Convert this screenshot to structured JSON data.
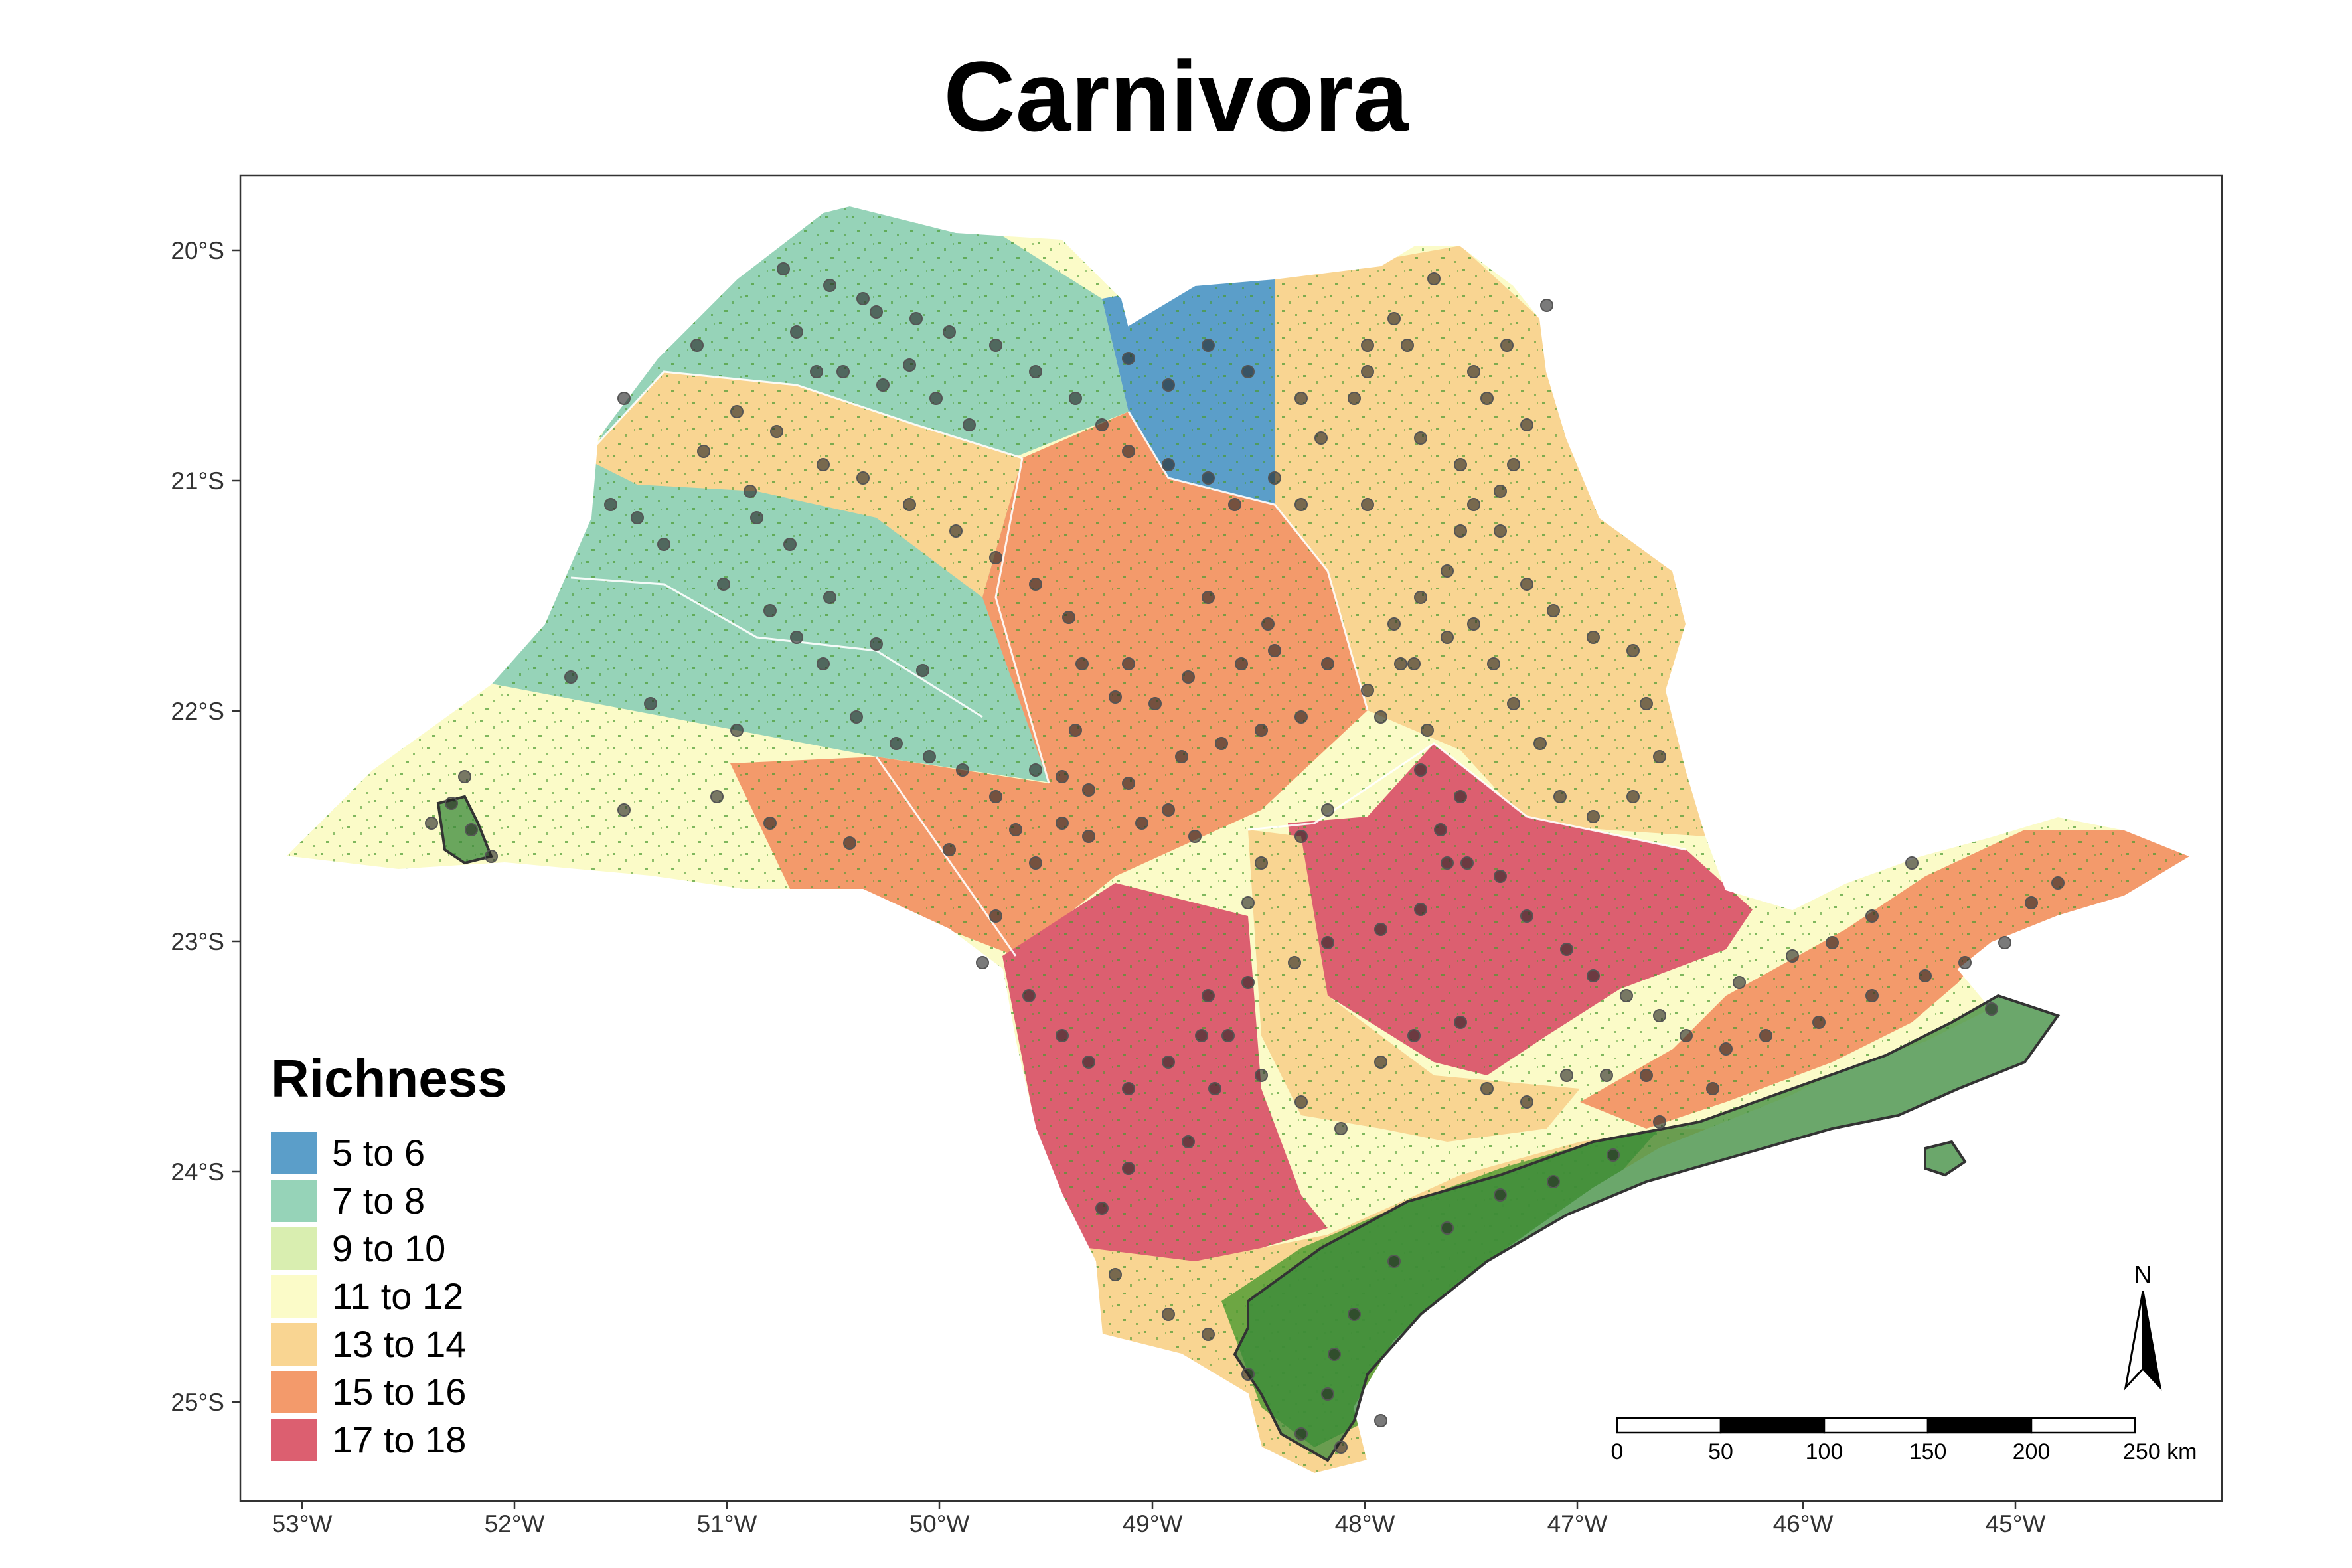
{
  "title": "Carnivora",
  "legend": {
    "title": "Richness",
    "items": [
      {
        "label": "5 to 6",
        "color": "#5b9ec9"
      },
      {
        "label": "7 to 8",
        "color": "#96d3b8"
      },
      {
        "label": "9 to 10",
        "color": "#d9eeb0"
      },
      {
        "label": "11 to 12",
        "color": "#fbfbc8"
      },
      {
        "label": "13 to 14",
        "color": "#f9d592"
      },
      {
        "label": "15 to 16",
        "color": "#f39a6b"
      },
      {
        "label": "17 to 18",
        "color": "#dc5f70"
      }
    ]
  },
  "axes": {
    "x_ticks": [
      "53°W",
      "52°W",
      "51°W",
      "50°W",
      "49°W",
      "48°W",
      "47°W",
      "46°W",
      "45°W"
    ],
    "y_ticks": [
      "20°S",
      "21°S",
      "22°S",
      "23°S",
      "24°S",
      "25°S"
    ]
  },
  "scale_bar": {
    "labels": [
      "0",
      "50",
      "100",
      "150",
      "200",
      "250 km"
    ]
  },
  "north_arrow": {
    "label": "N"
  },
  "colors": {
    "protected_area_fill": "#3a8a3a",
    "protected_area_outline": "#333333",
    "forest_speckle": "#4a9a30",
    "occurrence_point": "#222222"
  }
}
